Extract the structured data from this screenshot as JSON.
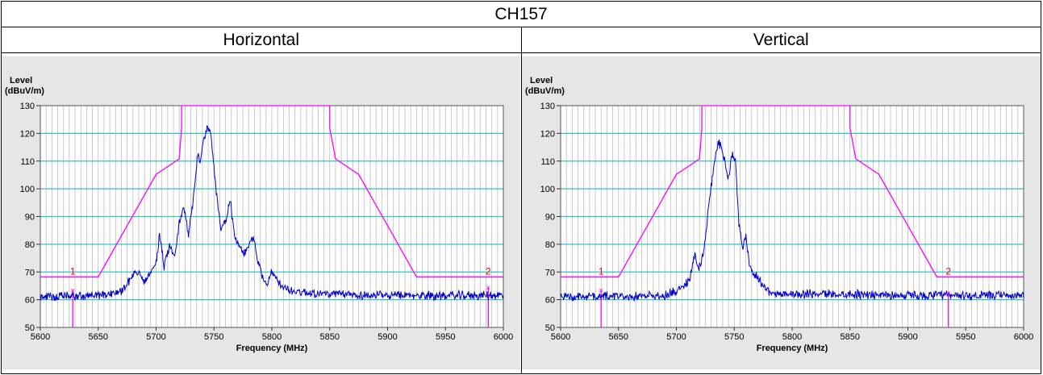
{
  "table": {
    "title": "CH157",
    "columns": [
      "Horizontal",
      "Vertical"
    ]
  },
  "colors": {
    "panel_bg": "#e6e6e6",
    "plot_bg": "#ffffff",
    "hgrid": "#33c3c3",
    "vgrid": "#bdbdbd",
    "mask": "#ff00ff",
    "trace": "#0000cc",
    "marker_text": "#ff0000"
  },
  "chart_data": [
    {
      "type": "line",
      "title": "Horizontal",
      "ylabel_line1": "Level",
      "ylabel_line2": "(dBuV/m)",
      "xlabel": "Frequency (MHz)",
      "xlim": [
        5600,
        6000
      ],
      "ylim": [
        50,
        130
      ],
      "xticks": [
        5600,
        5650,
        5700,
        5750,
        5800,
        5850,
        5900,
        5950,
        6000
      ],
      "yticks": [
        50,
        60,
        70,
        80,
        90,
        100,
        110,
        120,
        130
      ],
      "limit_mask": {
        "x": [
          5600,
          5650,
          5700,
          5720,
          5722,
          5722,
          5850,
          5850,
          5855,
          5875,
          5925,
          6000
        ],
        "y": [
          68.2,
          68.2,
          105.2,
          110.8,
          122,
          130,
          130,
          122,
          110.8,
          105.2,
          68.2,
          68.2
        ]
      },
      "peaks": {
        "x": [
          5600,
          5650,
          5670,
          5680,
          5685,
          5690,
          5695,
          5700,
          5703,
          5707,
          5712,
          5716,
          5720,
          5724,
          5728,
          5732,
          5736,
          5738,
          5741,
          5744,
          5747,
          5750,
          5753,
          5756,
          5760,
          5764,
          5768,
          5772,
          5776,
          5780,
          5784,
          5788,
          5792,
          5796,
          5800,
          5805,
          5810,
          5820,
          5835,
          5850,
          5900,
          6000
        ],
        "y": [
          61,
          61.5,
          63,
          69,
          70,
          66,
          69,
          74,
          83,
          72,
          80,
          76,
          88,
          93,
          84,
          96,
          112,
          109,
          118,
          122,
          120,
          108,
          95,
          86,
          88,
          96,
          82,
          79,
          76,
          80,
          83,
          74,
          68,
          66,
          70,
          67,
          64,
          63,
          62.5,
          62,
          61.5,
          61.5
        ]
      },
      "markers": [
        {
          "label": "1",
          "x": 5628,
          "y": 63.5
        },
        {
          "label": "2",
          "x": 5987,
          "y": 64.5
        }
      ]
    },
    {
      "type": "line",
      "title": "Vertical",
      "ylabel_line1": "Level",
      "ylabel_line2": "(dBuV/m)",
      "xlabel": "Frequency (MHz)",
      "xlim": [
        5600,
        6000
      ],
      "ylim": [
        50,
        130
      ],
      "xticks": [
        5600,
        5650,
        5700,
        5750,
        5800,
        5850,
        5900,
        5950,
        6000
      ],
      "yticks": [
        50,
        60,
        70,
        80,
        90,
        100,
        110,
        120,
        130
      ],
      "limit_mask": {
        "x": [
          5600,
          5650,
          5700,
          5720,
          5722,
          5722,
          5850,
          5850,
          5855,
          5875,
          5925,
          6000
        ],
        "y": [
          68.2,
          68.2,
          105.2,
          110.8,
          122,
          130,
          130,
          122,
          110.8,
          105.2,
          68.2,
          68.2
        ]
      },
      "peaks": {
        "x": [
          5600,
          5690,
          5705,
          5712,
          5716,
          5718,
          5721,
          5724,
          5727,
          5730,
          5733,
          5736,
          5739,
          5742,
          5745,
          5748,
          5751,
          5754,
          5757,
          5760,
          5763,
          5766,
          5770,
          5775,
          5780,
          5790,
          5800,
          5850,
          5900,
          6000
        ],
        "y": [
          61,
          61.5,
          64,
          68,
          76,
          71,
          73,
          78,
          90,
          101,
          110,
          116,
          116,
          109,
          103,
          112,
          110,
          88,
          78,
          83,
          72,
          70,
          68,
          65,
          63,
          62,
          62,
          62,
          61.5,
          61.5
        ]
      },
      "markers": [
        {
          "label": "1",
          "x": 5635,
          "y": 63.5
        },
        {
          "label": "2",
          "x": 5935,
          "y": 62.5
        }
      ]
    }
  ]
}
